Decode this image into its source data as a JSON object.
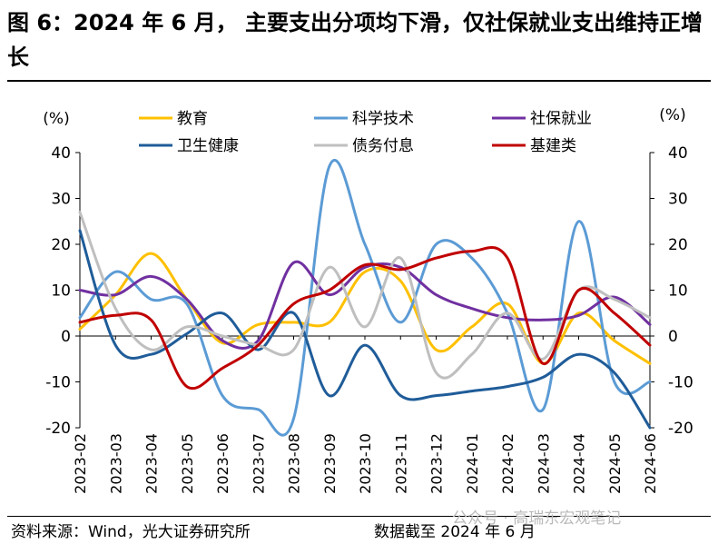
{
  "title": "图 6：2024 年 6 月， 主要支出分项均下滑，仅社保就业支出维持正增长",
  "footer": {
    "source": "资料来源：Wind，光大证券研究所",
    "date_note": "数据截至 2024 年 6 月",
    "watermark": "公众号 · 高瑞东宏观笔记"
  },
  "chart_data": {
    "type": "line",
    "title": "",
    "ylabel_left": "(%)",
    "ylabel_right": "(%)",
    "ylim": [
      -20,
      40
    ],
    "yticks": [
      40,
      30,
      20,
      10,
      0,
      -10,
      -20
    ],
    "grid": false,
    "legend_position": "top",
    "categories": [
      "2023-02",
      "2023-03",
      "2023-04",
      "2023-05",
      "2023-06",
      "2023-07",
      "2023-08",
      "2023-09",
      "2023-10",
      "2023-11",
      "2023-12",
      "2024-01",
      "2024-02",
      "2024-03",
      "2024-04",
      "2024-05",
      "2024-06"
    ],
    "series": [
      {
        "name": "教育",
        "color": "#FFC000",
        "values": [
          1.5,
          9,
          18,
          8,
          -1.5,
          2.5,
          3,
          3,
          14,
          12,
          -3,
          2,
          7,
          -6,
          5,
          -1,
          -6
        ]
      },
      {
        "name": "科学技术",
        "color": "#5B9BD5",
        "values": [
          4,
          14,
          8,
          7,
          -13,
          -16,
          -18,
          37,
          20,
          3,
          20,
          17,
          5,
          -16,
          25,
          -10,
          -10
        ]
      },
      {
        "name": "社保就业",
        "color": "#7030A0",
        "values": [
          10,
          9,
          13,
          8,
          -1,
          -1,
          16,
          9,
          15,
          15,
          9,
          6,
          4,
          3.5,
          4.5,
          8.5,
          2.5
        ]
      },
      {
        "name": "卫生健康",
        "color": "#1F5C99",
        "values": [
          23,
          -2,
          -4,
          0.5,
          5,
          -3,
          5,
          -13,
          -2,
          -13,
          -13,
          -12,
          -11,
          -9,
          -4,
          -8,
          -20
        ]
      },
      {
        "name": "债务付息",
        "color": "#BFBFBF",
        "values": [
          27,
          6,
          -3,
          2,
          0,
          -2,
          -3,
          15,
          2,
          17,
          -8,
          -4,
          5,
          -5,
          10,
          8,
          4
        ]
      },
      {
        "name": "基建类",
        "color": "#C00000",
        "values": [
          3,
          4.5,
          3.5,
          -11,
          -7,
          -2,
          7,
          10,
          15.5,
          14.5,
          17,
          18.5,
          17,
          -6,
          10,
          5,
          -2
        ]
      }
    ]
  }
}
